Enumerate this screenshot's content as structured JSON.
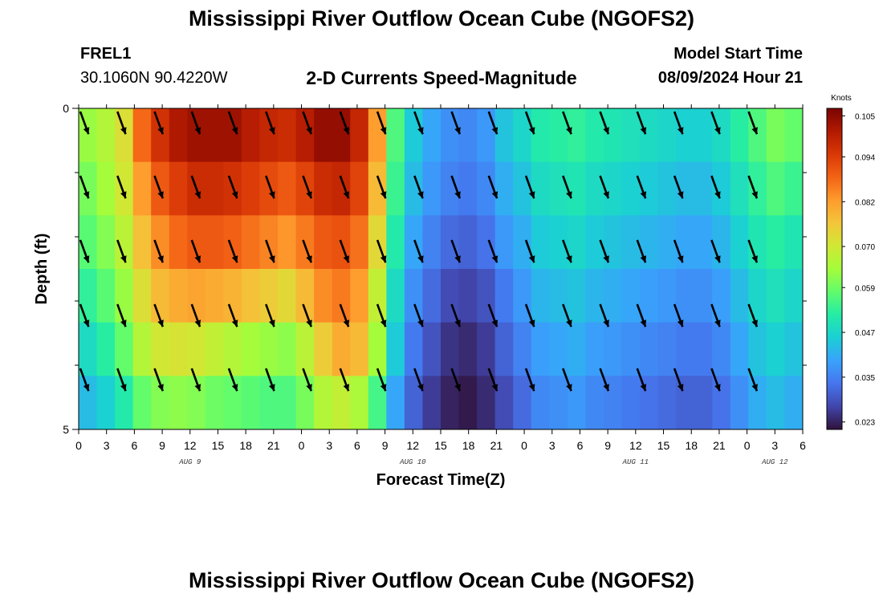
{
  "header": {
    "title": "Mississippi River Outflow Ocean Cube (NGOFS2)",
    "station_name": "FREL1",
    "station_coords": "30.1060N  90.4220W",
    "chart_title": "2-D Currents Speed-Magnitude",
    "model_start_label": "Model Start Time",
    "model_start_value": "08/09/2024 Hour 21"
  },
  "footer": {
    "title": "Mississippi River Outflow Ocean Cube (NGOFS2)"
  },
  "chart_data": {
    "type": "heatmap",
    "title": "2-D Currents Speed-Magnitude",
    "xlabel": "Forecast Time(Z)",
    "ylabel": "Depth (ft)",
    "x_hours": [
      0,
      3,
      6,
      9,
      12,
      15,
      18,
      21,
      24,
      27,
      30,
      33,
      36,
      39,
      42,
      45,
      48,
      51,
      54,
      57,
      60,
      63,
      66,
      69,
      72,
      75,
      78
    ],
    "x_tick_labels": [
      "0",
      "3",
      "6",
      "9",
      "12",
      "15",
      "18",
      "21",
      "0",
      "3",
      "6",
      "9",
      "12",
      "15",
      "18",
      "21",
      "0",
      "3",
      "6",
      "9",
      "12",
      "15",
      "18",
      "21",
      "0",
      "3",
      "6"
    ],
    "date_labels": [
      {
        "text": "AUG 9",
        "hour": 12
      },
      {
        "text": "AUG 10",
        "hour": 36
      },
      {
        "text": "AUG 11",
        "hour": 60
      },
      {
        "text": "AUG 12",
        "hour": 75
      }
    ],
    "ylim": [
      0,
      5
    ],
    "y_tick_labels": [
      "0",
      "5"
    ],
    "y_minor_ticks": [
      1,
      2,
      3,
      4
    ],
    "depth_layers": [
      0,
      1,
      2,
      3,
      4,
      5
    ],
    "speed_knots": [
      [
        0.063,
        0.066,
        0.072,
        0.088,
        0.096,
        0.101,
        0.103,
        0.103,
        0.103,
        0.1,
        0.098,
        0.097,
        0.1,
        0.104,
        0.104,
        0.098,
        0.082,
        0.056,
        0.045,
        0.04,
        0.037,
        0.036,
        0.038,
        0.044,
        0.047,
        0.051,
        0.052,
        0.053,
        0.051,
        0.05,
        0.049,
        0.048,
        0.047,
        0.046,
        0.046,
        0.048,
        0.052,
        0.056,
        0.06,
        0.058
      ],
      [
        0.06,
        0.064,
        0.07,
        0.082,
        0.09,
        0.094,
        0.097,
        0.097,
        0.096,
        0.094,
        0.092,
        0.09,
        0.093,
        0.097,
        0.098,
        0.093,
        0.078,
        0.054,
        0.043,
        0.038,
        0.035,
        0.034,
        0.036,
        0.041,
        0.044,
        0.048,
        0.049,
        0.05,
        0.048,
        0.047,
        0.046,
        0.045,
        0.044,
        0.043,
        0.043,
        0.045,
        0.049,
        0.053,
        0.056,
        0.054
      ],
      [
        0.057,
        0.061,
        0.067,
        0.077,
        0.084,
        0.088,
        0.09,
        0.09,
        0.089,
        0.087,
        0.085,
        0.083,
        0.086,
        0.09,
        0.091,
        0.087,
        0.073,
        0.051,
        0.04,
        0.035,
        0.032,
        0.031,
        0.033,
        0.038,
        0.041,
        0.045,
        0.046,
        0.047,
        0.045,
        0.044,
        0.043,
        0.042,
        0.041,
        0.04,
        0.04,
        0.042,
        0.046,
        0.05,
        0.052,
        0.05
      ],
      [
        0.053,
        0.057,
        0.063,
        0.072,
        0.078,
        0.08,
        0.081,
        0.08,
        0.079,
        0.077,
        0.075,
        0.073,
        0.078,
        0.084,
        0.086,
        0.082,
        0.068,
        0.048,
        0.037,
        0.032,
        0.028,
        0.027,
        0.029,
        0.034,
        0.038,
        0.042,
        0.043,
        0.044,
        0.042,
        0.041,
        0.04,
        0.039,
        0.038,
        0.037,
        0.037,
        0.039,
        0.043,
        0.047,
        0.049,
        0.047
      ],
      [
        0.048,
        0.052,
        0.058,
        0.066,
        0.07,
        0.071,
        0.07,
        0.068,
        0.066,
        0.064,
        0.063,
        0.062,
        0.067,
        0.075,
        0.08,
        0.078,
        0.064,
        0.045,
        0.034,
        0.029,
        0.025,
        0.024,
        0.026,
        0.031,
        0.035,
        0.039,
        0.04,
        0.041,
        0.039,
        0.038,
        0.037,
        0.036,
        0.035,
        0.034,
        0.034,
        0.036,
        0.04,
        0.044,
        0.046,
        0.044
      ],
      [
        0.043,
        0.046,
        0.051,
        0.058,
        0.061,
        0.062,
        0.061,
        0.059,
        0.058,
        0.057,
        0.056,
        0.056,
        0.06,
        0.066,
        0.068,
        0.065,
        0.055,
        0.04,
        0.031,
        0.026,
        0.023,
        0.022,
        0.024,
        0.028,
        0.032,
        0.036,
        0.037,
        0.038,
        0.036,
        0.035,
        0.034,
        0.033,
        0.032,
        0.031,
        0.031,
        0.033,
        0.037,
        0.041,
        0.043,
        0.041
      ]
    ],
    "arrow_hours": [
      0,
      4,
      8,
      12,
      16,
      20,
      24,
      28,
      32,
      36,
      40,
      44,
      48,
      52,
      56,
      60,
      64,
      68,
      72
    ],
    "arrow_depths": [
      0,
      1,
      2,
      3,
      4
    ],
    "arrow_direction_deg": 160,
    "colorbar": {
      "label": "Knots",
      "min": 0.021,
      "max": 0.107,
      "ticks": [
        "0.105",
        "0.094",
        "0.082",
        "0.070",
        "0.059",
        "0.047",
        "0.035",
        "0.023"
      ],
      "tick_values": [
        0.105,
        0.094,
        0.082,
        0.07,
        0.059,
        0.047,
        0.035,
        0.023
      ]
    },
    "colormap": [
      "#30123b",
      "#4145ab",
      "#4675ed",
      "#39a2fc",
      "#1bcfd4",
      "#24eca6",
      "#61fc6c",
      "#a4fc3b",
      "#d1e834",
      "#f3c63a",
      "#fe9b2d",
      "#f36315",
      "#d93806",
      "#b11901",
      "#7a0402"
    ]
  }
}
